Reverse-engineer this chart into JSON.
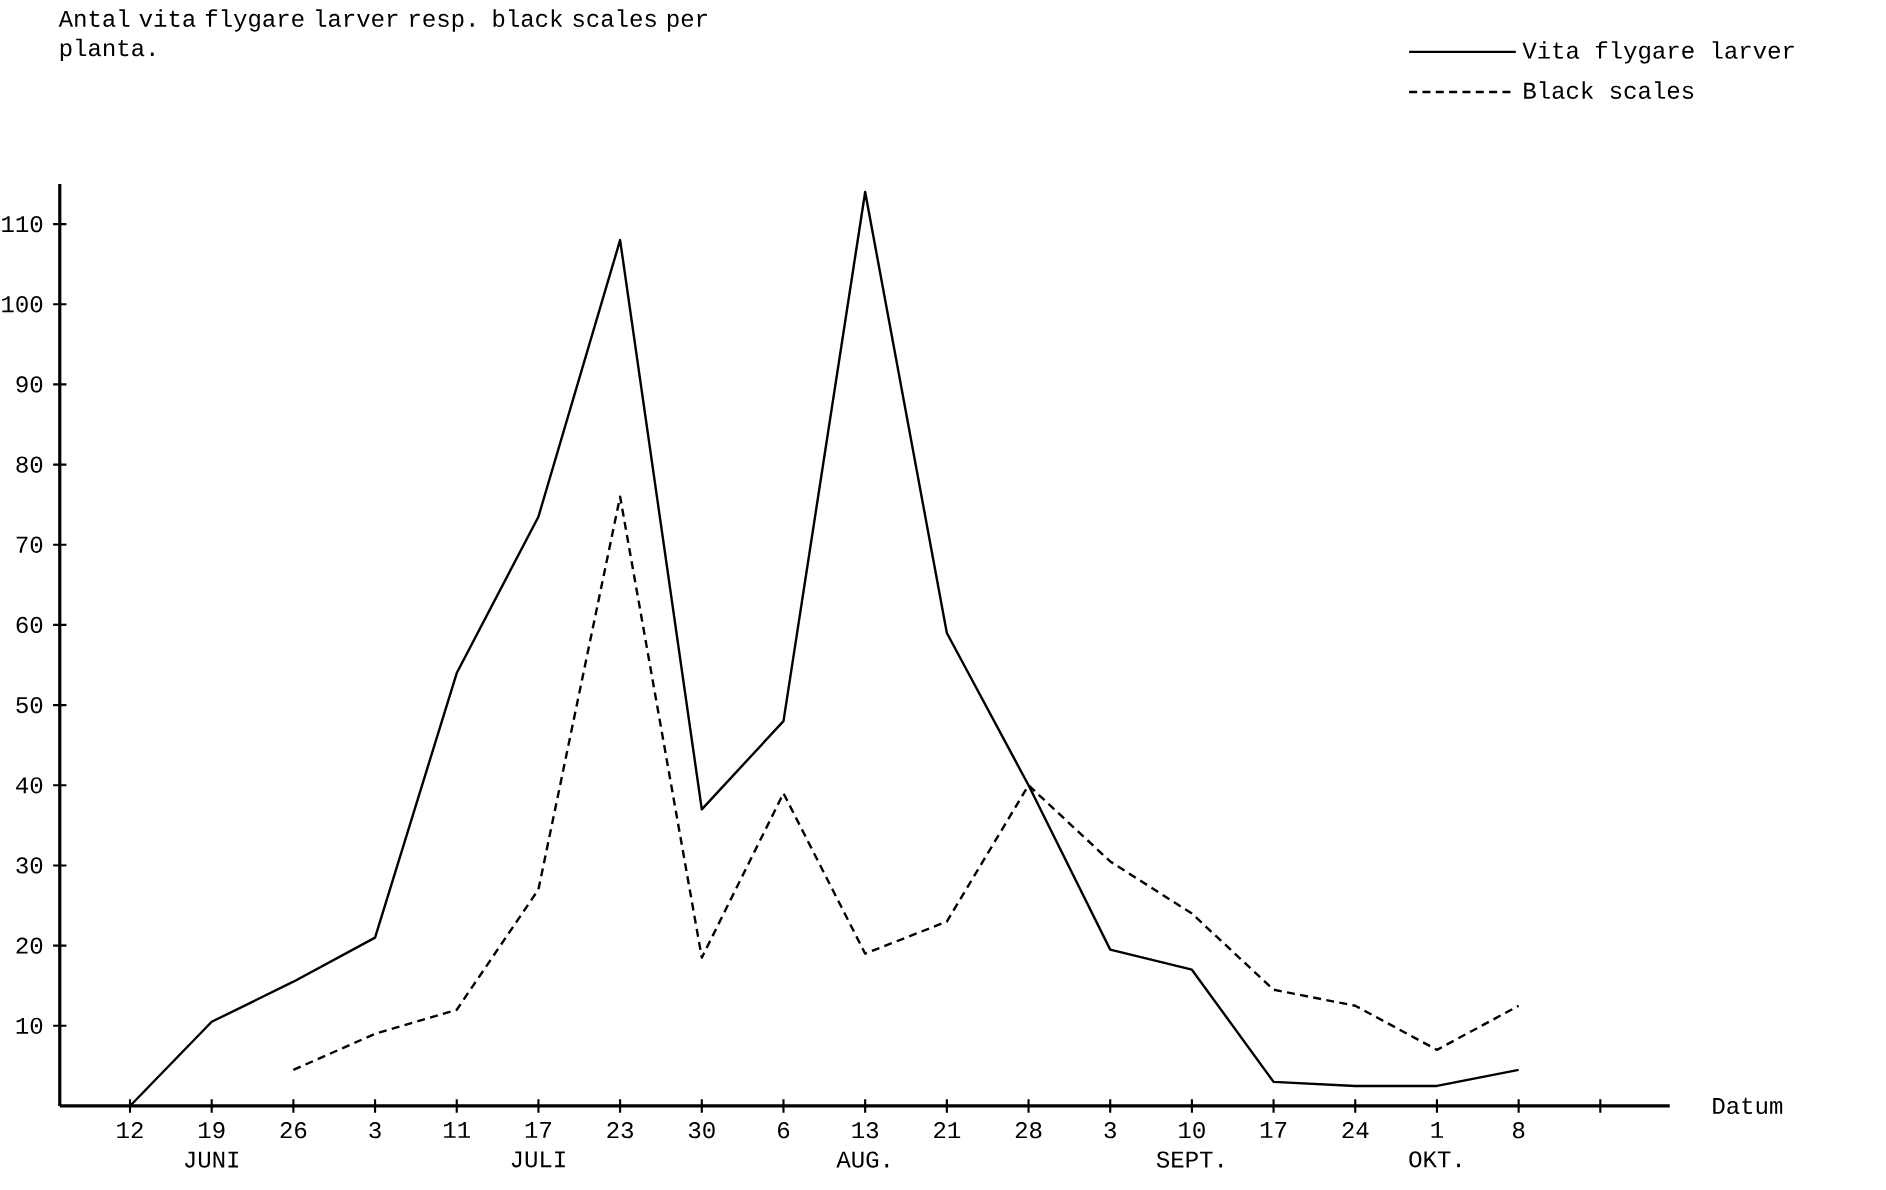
{
  "chart_data": {
    "type": "line",
    "xlabel": "Datum",
    "categories": [
      "12",
      "19 JUNI",
      "26",
      "3",
      "11",
      "17 JULI",
      "23",
      "30",
      "6",
      "13 AUG.",
      "21",
      "28",
      "3",
      "10 SEPT.",
      "17",
      "24",
      "1 OKT.",
      "8",
      null
    ],
    "series": [
      {
        "name": "Vita flygare larver",
        "color": "#000000",
        "line_style": "solid",
        "values": [
          0,
          10.5,
          15.5,
          21,
          54,
          73.5,
          108,
          37,
          48,
          114,
          59,
          40,
          19.5,
          17,
          3,
          2.5,
          2.5,
          4.5,
          null
        ]
      },
      {
        "name": "Black scales",
        "color": "#000000",
        "line_style": "dashed",
        "values": [
          null,
          null,
          4.5,
          9,
          12,
          27,
          76,
          18.5,
          39,
          19,
          23,
          40,
          30.5,
          24,
          14.5,
          12.5,
          7,
          12.5,
          null
        ]
      }
    ],
    "ylim": [
      0,
      115
    ],
    "yticks": [
      10,
      20,
      30,
      40,
      50,
      60,
      70,
      80,
      90,
      100,
      110
    ],
    "annotations": [
      "Antal vita flygare larver resp. black scales per planta."
    ],
    "legend": "top right",
    "grid": false,
    "marker": "none"
  }
}
